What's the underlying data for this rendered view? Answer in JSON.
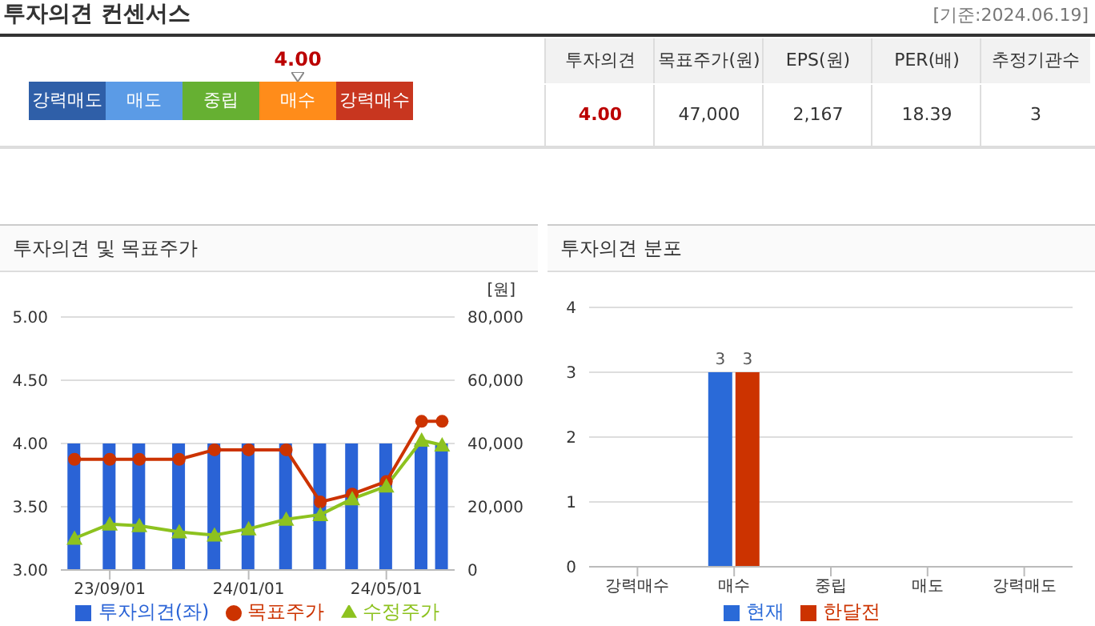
{
  "chart_data": [
    {
      "type": "other",
      "title": "투자의견 컨센서스",
      "categories": [
        "강력매도",
        "매도",
        "중립",
        "매수",
        "강력매수"
      ],
      "colors": [
        "#2f5fa8",
        "#5b9be6",
        "#66b032",
        "#ff8c1a",
        "#c8361f"
      ],
      "needle": "매수",
      "annotations": [
        "[기준:2024.06.19]",
        "4.00",
        "투자의견",
        "목표주가(원)",
        "EPS(원)",
        "PER(배)",
        "추정기관수",
        "4.00",
        "47,000",
        "2,167",
        "18.39",
        "3"
      ]
    },
    {
      "type": "bar",
      "title": "투자의견 및 목표주가",
      "y2label": "[원]",
      "x": [
        "2023-08-01",
        "2023-09-01",
        "2023-09-27",
        "2023-11-01",
        "2023-12-02",
        "2024-01-01",
        "2024-02-03",
        "2024-03-04",
        "2024-04-01",
        "2024-05-01",
        "2024-06-01",
        "2024-06-19"
      ],
      "series": [
        {
          "name": "투자의견(좌)",
          "type": "bar",
          "color": "#2a63d6",
          "values": [
            4,
            4,
            4,
            4,
            4,
            4,
            4,
            4,
            4,
            4,
            4,
            4
          ]
        },
        {
          "name": "목표주가",
          "type": "line",
          "axis": "y2",
          "color": "#cc3300",
          "marker": "circle",
          "values": [
            35000,
            35000,
            35000,
            35000,
            38000,
            38000,
            38000,
            21500,
            24000,
            28000,
            47000,
            47000
          ]
        },
        {
          "name": "수정주가",
          "type": "line",
          "axis": "y2",
          "color": "#8dc21f",
          "marker": "triangle",
          "values": [
            10000,
            14500,
            14000,
            12000,
            11000,
            13000,
            16000,
            17500,
            22500,
            26500,
            41000,
            39500
          ]
        }
      ],
      "xlim": [
        "2023-07-20",
        "2024-06-30"
      ],
      "xticks": [
        {
          "value": "2023-09-01",
          "label": "23/09/01"
        },
        {
          "value": "2024-01-01",
          "label": "24/01/01"
        },
        {
          "value": "2024-05-01",
          "label": "24/05/01"
        }
      ],
      "ylim": [
        3,
        5
      ],
      "yticks": [
        {
          "value": 3,
          "label": "3.00"
        },
        {
          "value": 3.5,
          "label": "3.50"
        },
        {
          "value": 4,
          "label": "4.00"
        },
        {
          "value": 4.5,
          "label": "4.50"
        },
        {
          "value": 5,
          "label": "5.00"
        }
      ],
      "y2lim": [
        0,
        80000
      ],
      "y2ticks": [
        0,
        {
          "value": 20000,
          "label": "20,000"
        },
        {
          "value": 40000,
          "label": "40,000"
        },
        {
          "value": 60000,
          "label": "60,000"
        },
        {
          "value": 80000,
          "label": "80,000"
        }
      ],
      "grid": "y",
      "legend": "bottom"
    },
    {
      "type": "bar",
      "title": "투자의견 분포",
      "categories": [
        "강력매수",
        "매수",
        "중립",
        "매도",
        "강력매도"
      ],
      "series": [
        {
          "name": "현재",
          "color": "#2a6ad8",
          "values": [
            0,
            3,
            0,
            0,
            0
          ],
          "value_labels": [
            null,
            "3",
            null,
            null,
            null
          ]
        },
        {
          "name": "한달전",
          "color": "#cc3300",
          "values": [
            0,
            3,
            0,
            0,
            0
          ],
          "value_labels": [
            null,
            "3",
            null,
            null,
            null
          ]
        }
      ],
      "ylim": [
        0,
        4
      ],
      "yticks": [
        0,
        1,
        2,
        3,
        4
      ],
      "grid": "y",
      "legend": "bottom"
    }
  ]
}
